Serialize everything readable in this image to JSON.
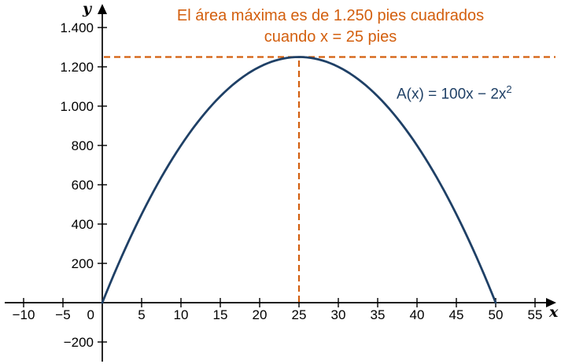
{
  "chart_data": {
    "type": "line",
    "title": "El área máxima es de 1.250 pies cuadrados cuando x = 25 pies",
    "annotation_lines": [
      "El área máxima es de 1.250 pies cuadrados",
      "cuando x = 25 pies"
    ],
    "function_label_base": "A(x) = 100x − 2x",
    "function_label_exponent": "2",
    "function": "A(x) = 100x − 2x^2",
    "coefficients": {
      "x2": -2,
      "x1": 100,
      "x0": 0
    },
    "domain": [
      0,
      50
    ],
    "x": [
      0,
      5,
      10,
      15,
      20,
      25,
      30,
      35,
      40,
      45,
      50
    ],
    "values": [
      0,
      450,
      800,
      1050,
      1200,
      1250,
      1200,
      1050,
      800,
      450,
      0
    ],
    "maximum": {
      "x": 25,
      "y": 1250
    },
    "xlabel": "x",
    "ylabel": "y",
    "origin_label": "0",
    "x_ticks": [
      {
        "v": -10,
        "label": "−10"
      },
      {
        "v": -5,
        "label": "−5"
      },
      {
        "v": 5,
        "label": "5"
      },
      {
        "v": 10,
        "label": "10"
      },
      {
        "v": 15,
        "label": "15"
      },
      {
        "v": 20,
        "label": "20"
      },
      {
        "v": 25,
        "label": "25"
      },
      {
        "v": 30,
        "label": "30"
      },
      {
        "v": 35,
        "label": "35"
      },
      {
        "v": 40,
        "label": "40"
      },
      {
        "v": 45,
        "label": "45"
      },
      {
        "v": 50,
        "label": "50"
      },
      {
        "v": 55,
        "label": "55"
      }
    ],
    "y_ticks": [
      {
        "v": -200,
        "label": "−200"
      },
      {
        "v": 200,
        "label": "200"
      },
      {
        "v": 400,
        "label": "400"
      },
      {
        "v": 600,
        "label": "600"
      },
      {
        "v": 800,
        "label": "800"
      },
      {
        "v": 1000,
        "label": "1.000"
      },
      {
        "v": 1200,
        "label": "1.200"
      },
      {
        "v": 1400,
        "label": "1.400"
      }
    ],
    "xlim": [
      -12.4,
      58.3
    ],
    "ylim": [
      -310,
      1540
    ],
    "grid": false,
    "legend": false,
    "dashed_guides": {
      "horizontal_y": 1250,
      "vertical_x": 25
    },
    "colors": {
      "curve": "#1f4066",
      "accent": "#d35f0e",
      "axis": "#000000"
    }
  }
}
